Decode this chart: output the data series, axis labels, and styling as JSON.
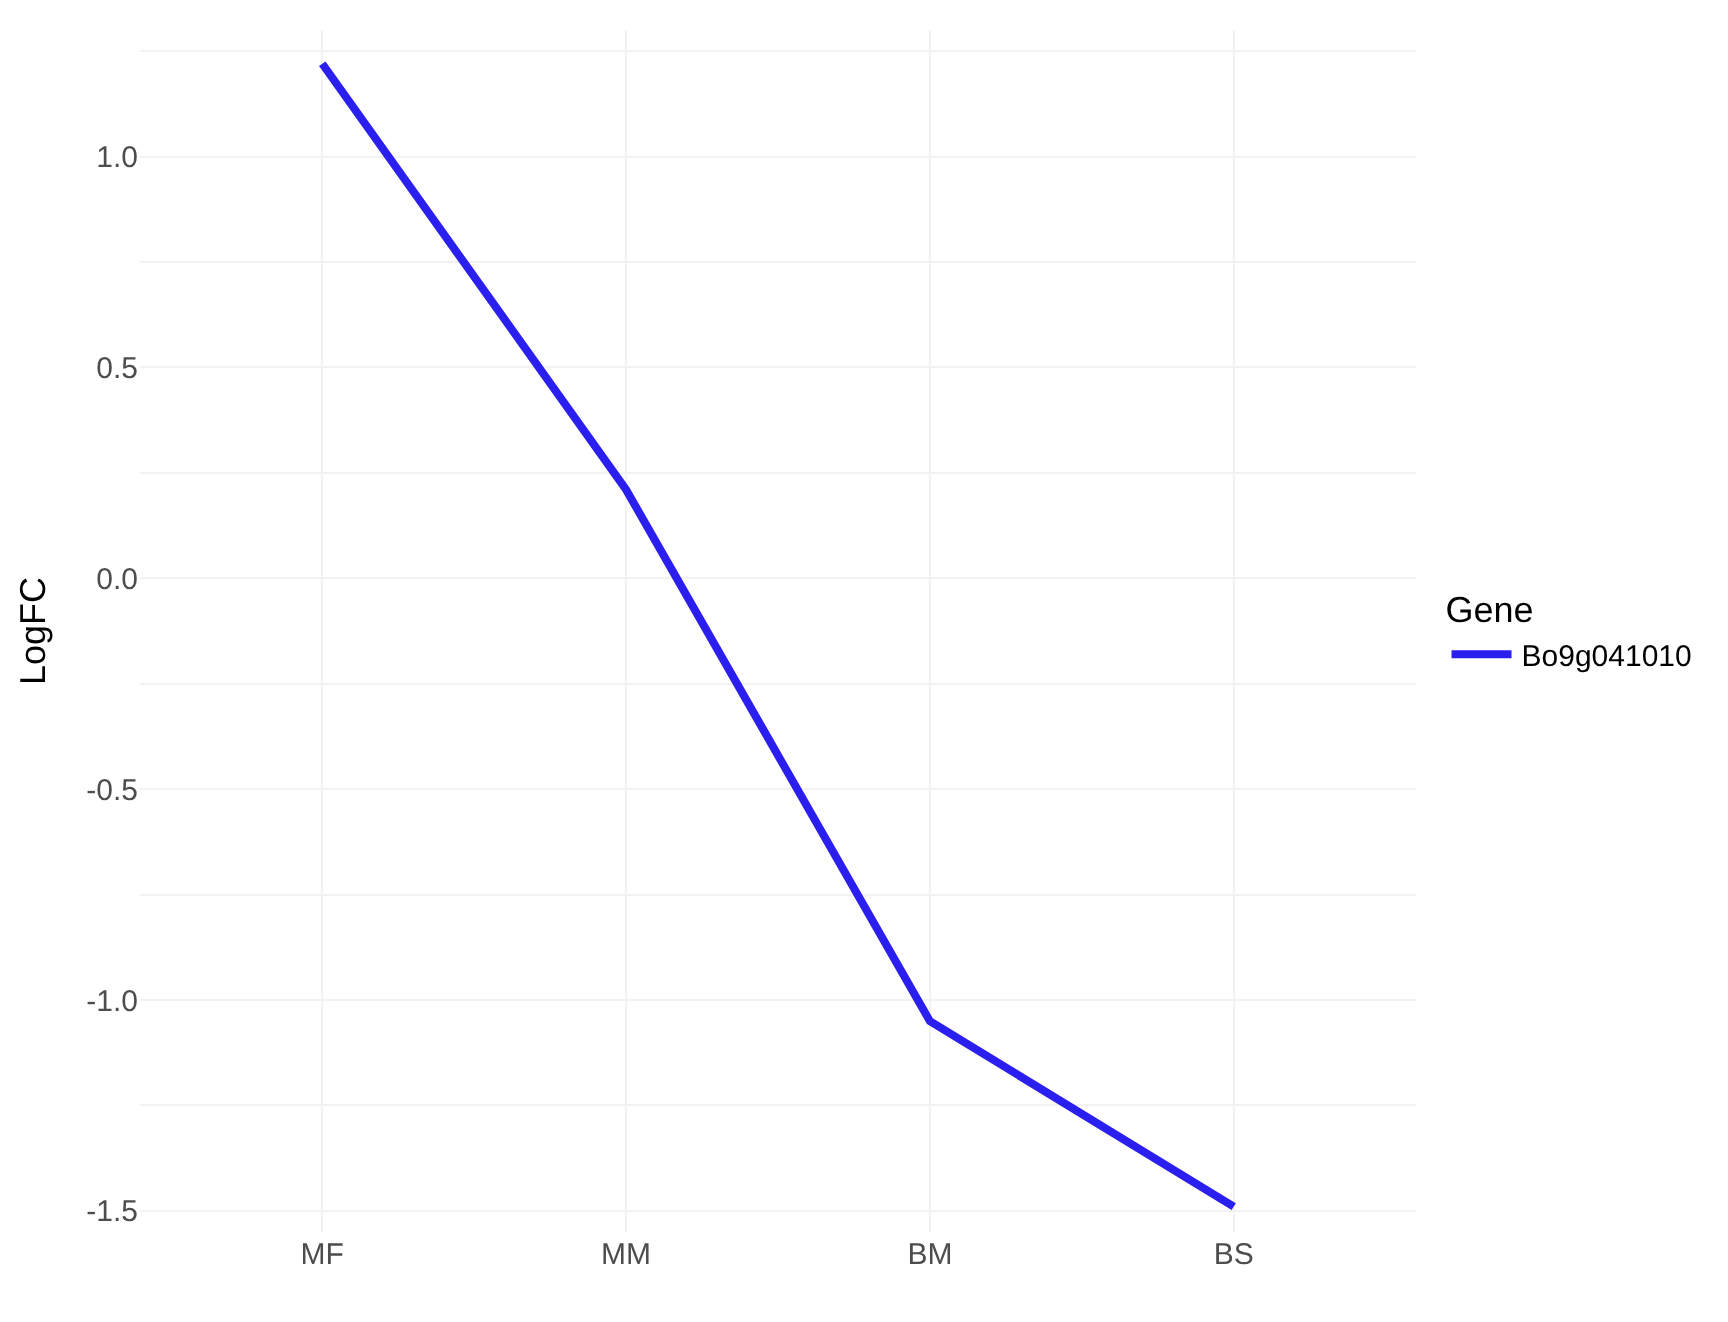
{
  "chart_data": {
    "type": "line",
    "ylabel": "LogFC",
    "legend_title": "Gene",
    "categories": [
      "MF",
      "MM",
      "BM",
      "BS"
    ],
    "series": [
      {
        "name": "Bo9g041010",
        "color": "#2b1ff0",
        "values": [
          1.22,
          0.21,
          -1.05,
          -1.49
        ]
      }
    ],
    "ylim": [
      -1.55,
      1.3
    ],
    "yticks": [
      {
        "value": -1.5,
        "label": "-1.5"
      },
      {
        "value": -1.25,
        "label": null
      },
      {
        "value": -1.0,
        "label": "-1.0"
      },
      {
        "value": -0.75,
        "label": null
      },
      {
        "value": -0.5,
        "label": "-0.5"
      },
      {
        "value": -0.25,
        "label": null
      },
      {
        "value": 0.0,
        "label": "0.0"
      },
      {
        "value": 0.25,
        "label": null
      },
      {
        "value": 0.5,
        "label": "0.5"
      },
      {
        "value": 0.75,
        "label": null
      },
      {
        "value": 1.0,
        "label": "1.0"
      },
      {
        "value": 1.25,
        "label": null
      }
    ],
    "grid": true,
    "legend": "right",
    "marker": "none",
    "line_style": "solid"
  }
}
